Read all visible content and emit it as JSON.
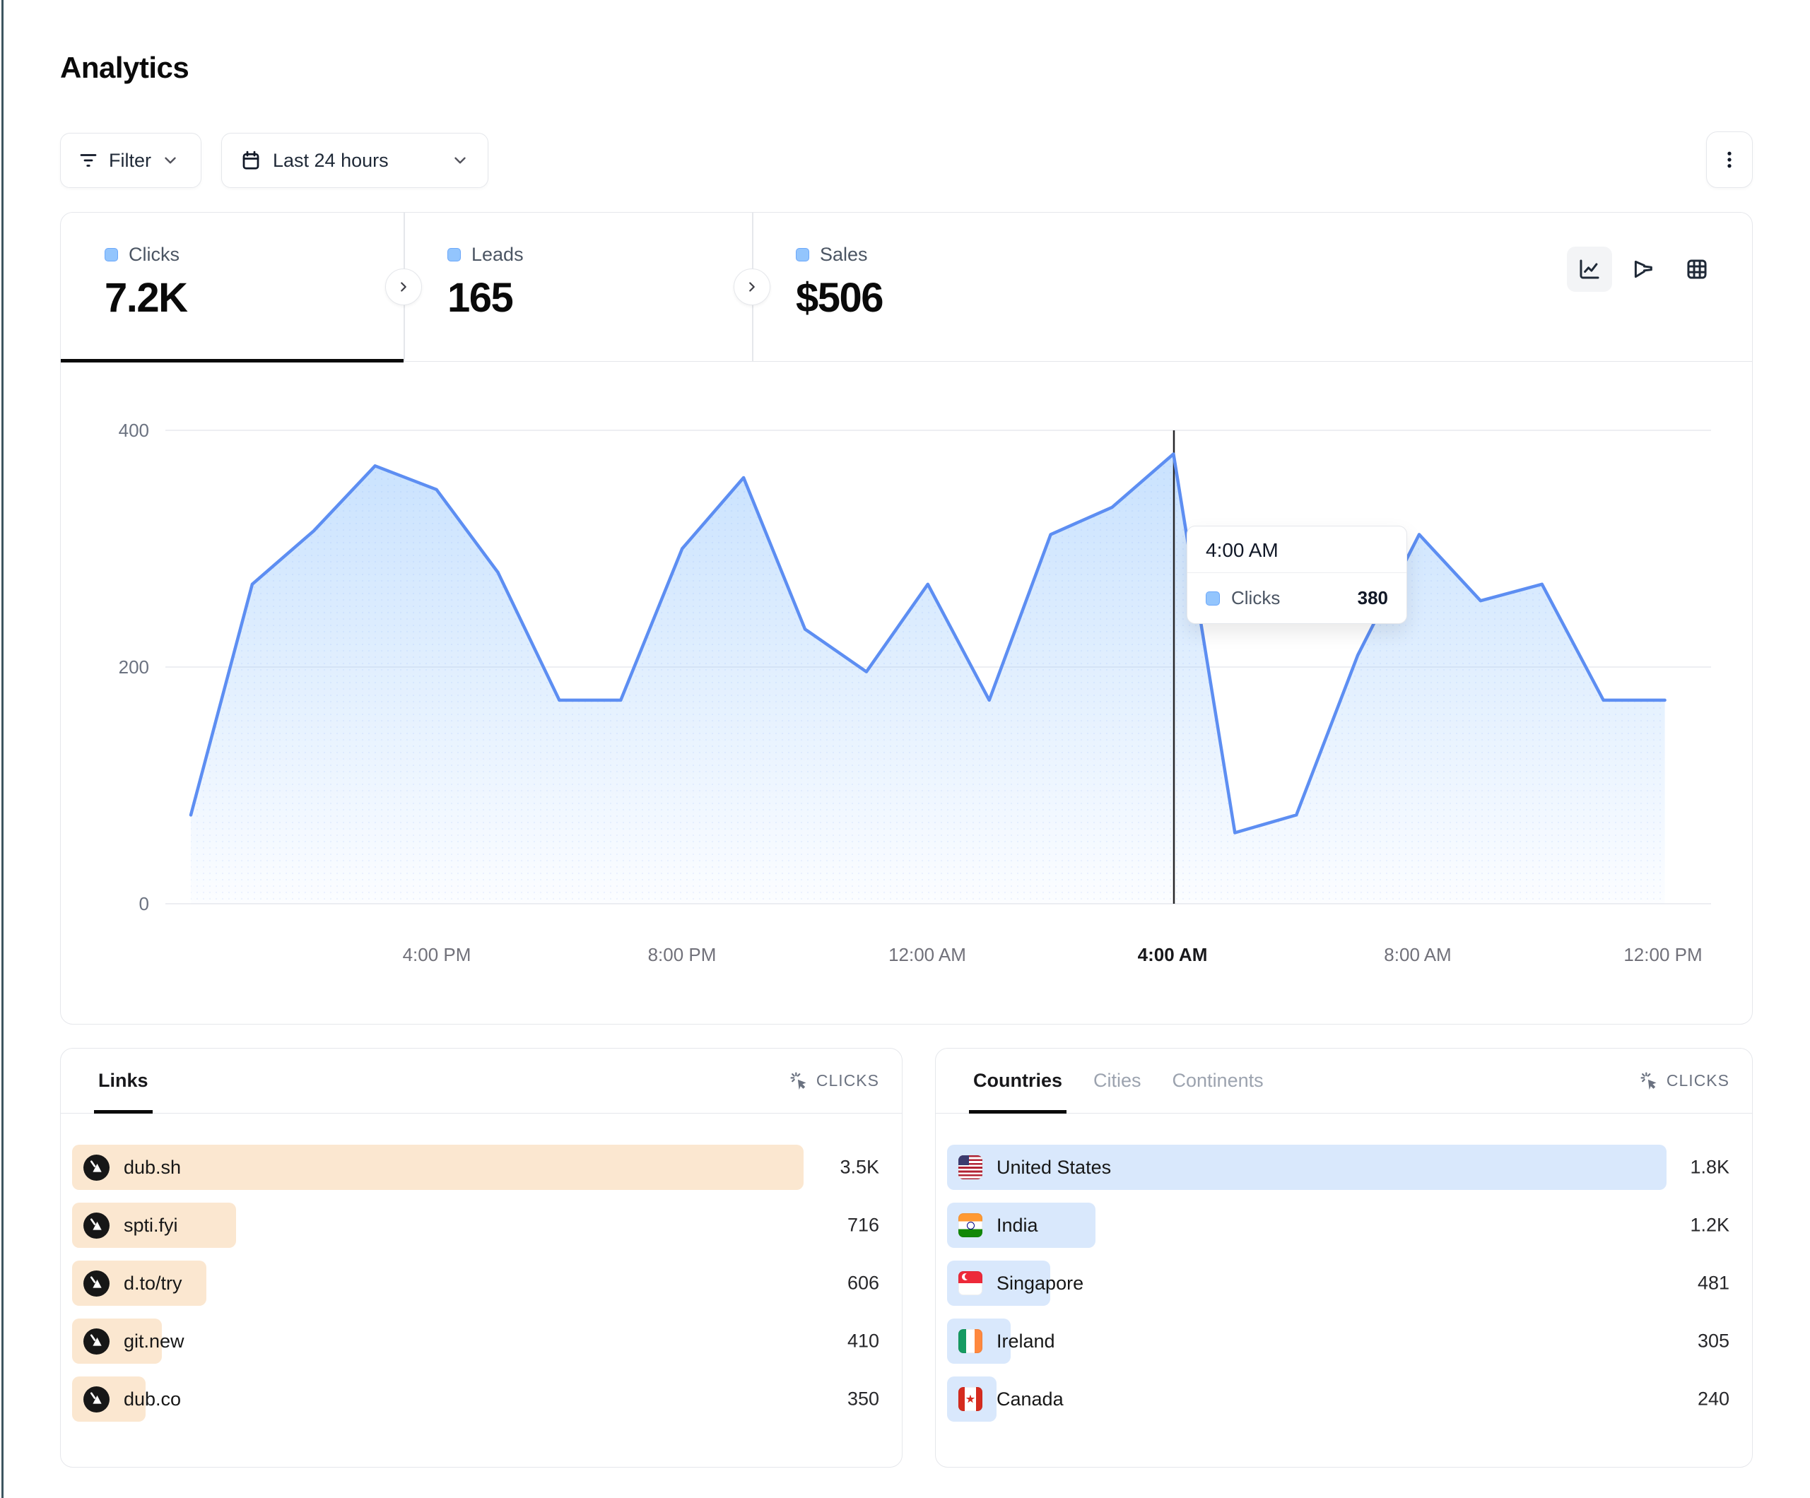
{
  "page": {
    "title": "Analytics"
  },
  "theme": {
    "accent_blue": "#5d8ef2",
    "links_bar": "#fbe7d0",
    "countries_bar": "#d9e8fc",
    "swatch_blue": "#93c5fd",
    "edge_strip": "#3d5560"
  },
  "toolbar": {
    "filter_label": "Filter",
    "date_range_label": "Last 24 hours"
  },
  "stats": {
    "tabs": [
      {
        "label": "Clicks",
        "value": "7.2K",
        "active": true
      },
      {
        "label": "Leads",
        "value": "165",
        "active": false
      },
      {
        "label": "Sales",
        "value": "$506",
        "active": false
      }
    ]
  },
  "chart_data": {
    "type": "area",
    "series_name": "Clicks",
    "x_hours": [
      "12 PM",
      "1 PM",
      "2 PM",
      "3 PM",
      "4 PM",
      "5 PM",
      "6 PM",
      "7 PM",
      "8 PM",
      "9 PM",
      "10 PM",
      "11 PM",
      "12 AM",
      "1 AM",
      "2 AM",
      "3 AM",
      "4 AM",
      "5 AM",
      "6 AM",
      "7 AM",
      "8 AM",
      "9 AM",
      "10 AM",
      "11 AM",
      "12 PM"
    ],
    "values": [
      75,
      270,
      315,
      370,
      350,
      280,
      172,
      172,
      300,
      360,
      232,
      196,
      270,
      172,
      312,
      335,
      380,
      60,
      75,
      210,
      312,
      256,
      270,
      172,
      172
    ],
    "xticks": [
      "4:00 PM",
      "8:00 PM",
      "12:00 AM",
      "4:00 AM",
      "8:00 AM",
      "12:00 PM"
    ],
    "ytick_labels": [
      "400",
      "200",
      "0"
    ],
    "ylim": [
      0,
      400
    ],
    "grid": "horizontal",
    "legend_position": "none",
    "tooltip": {
      "time": "4:00 AM",
      "series": "Clicks",
      "value": "380"
    }
  },
  "links_panel": {
    "tab_label": "Links",
    "metric_label": "CLICKS",
    "rows": [
      {
        "label": "dub.sh",
        "value": "3.5K",
        "bar_pct": 90.6
      },
      {
        "label": "spti.fyi",
        "value": "716",
        "bar_pct": 20.3
      },
      {
        "label": "d.to/try",
        "value": "606",
        "bar_pct": 16.6
      },
      {
        "label": "git.new",
        "value": "410",
        "bar_pct": 11.1
      },
      {
        "label": "dub.co",
        "value": "350",
        "bar_pct": 9.1
      }
    ]
  },
  "countries_panel": {
    "tabs": [
      "Countries",
      "Cities",
      "Continents"
    ],
    "active_tab": "Countries",
    "metric_label": "CLICKS",
    "rows": [
      {
        "label": "United States",
        "value": "1.8K",
        "bar_pct": 92.0,
        "flag": "us"
      },
      {
        "label": "India",
        "value": "1.2K",
        "bar_pct": 19.0,
        "flag": "in"
      },
      {
        "label": "Singapore",
        "value": "481",
        "bar_pct": 13.2,
        "flag": "sg"
      },
      {
        "label": "Ireland",
        "value": "305",
        "bar_pct": 8.1,
        "flag": "ie"
      },
      {
        "label": "Canada",
        "value": "240",
        "bar_pct": 6.3,
        "flag": "ca"
      }
    ]
  }
}
